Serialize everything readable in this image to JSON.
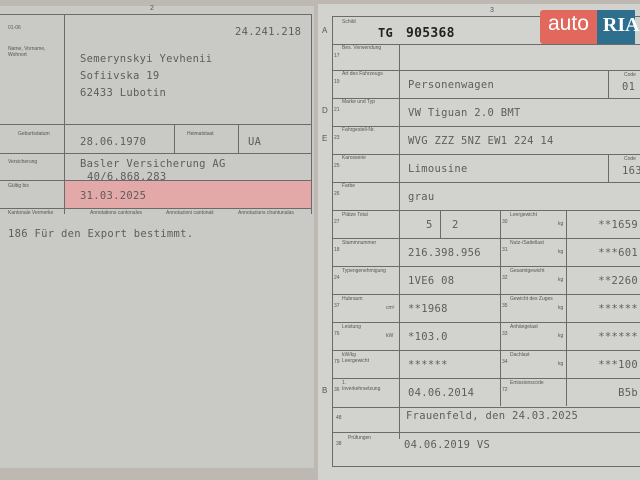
{
  "left": {
    "page_number": "2",
    "code": "01-06",
    "number": "24.241.218",
    "owner_label": "Name, Vorname, Wohnort",
    "owner_name": "Semerynskyi Yevhenii",
    "street": "Sofiivska 19",
    "city": "62433 Lubotin",
    "birth_label": "Geburtsdatum",
    "birth_date": "28.06.1970",
    "origin_label": "Heimatstaat",
    "origin": "UA",
    "insurance_label": "Versicherung",
    "insurance": "Basler Versicherung AG",
    "insurance_number": "40/6.868.283",
    "valid_label": "Gültig bis",
    "valid_until": "31.03.2025",
    "notes_labels": [
      "Kantonale Vermerke",
      "Annotations cantonales",
      "Annotazioni cantonali",
      "Annotaziuns chantunalas"
    ],
    "note": "186 Für den Export bestimmt."
  },
  "right": {
    "page_number": "3",
    "plate_label": "Schild",
    "plate_canton": "TG",
    "plate_number": "905368",
    "plate_color": "weiss",
    "rows": [
      {
        "letter": "A",
        "code": "15",
        "label": "Schild",
        "value": ""
      },
      {
        "letter": "",
        "code": "17",
        "label": "Bes. Verwendung",
        "value": ""
      },
      {
        "letter": "",
        "code": "19",
        "label": "Art des Fahrzeugs",
        "value": "Personenwagen",
        "code_label": "Code",
        "code_value": "01"
      },
      {
        "letter": "D",
        "code": "21",
        "label": "Marke und Typ",
        "value": "VW Tiguan 2.0 BMT"
      },
      {
        "letter": "E",
        "code": "23",
        "label": "Fahrgestell-Nr.",
        "value": "WVG ZZZ 5NZ EW1 224 14"
      },
      {
        "letter": "",
        "code": "25",
        "label": "Karosserie",
        "value": "Limousine",
        "code_label": "Code",
        "code_value": "163"
      },
      {
        "letter": "",
        "code": "26",
        "label": "Farbe",
        "value": "grau"
      }
    ],
    "grid": [
      {
        "code": "27",
        "label": "Plätze Total",
        "value": "5",
        "mid": "2",
        "r_code": "30",
        "r_label": "Leergewicht",
        "r_unit": "kg",
        "r_value": "**1659"
      },
      {
        "code": "18",
        "label": "Stammnummer",
        "value": "216.398.956",
        "r_code": "31",
        "r_label": "Nutz-/Sattellast",
        "r_unit": "kg",
        "r_value": "***601"
      },
      {
        "code": "24",
        "label": "Typengenehmigung",
        "value": "1VE6 08",
        "r_code": "32",
        "r_label": "Gesamtgewicht",
        "r_unit": "kg",
        "r_value": "**2260"
      },
      {
        "code": "37",
        "label": "Hubraum",
        "unit": "cm³",
        "value": "**1968",
        "r_code": "35",
        "r_label": "Gewicht des Zuges",
        "r_unit": "kg",
        "r_value": "******"
      },
      {
        "code": "76",
        "label": "Leistung",
        "unit": "kW",
        "value": "*103.0",
        "r_code": "33",
        "r_label": "Anhängelast",
        "r_unit": "kg",
        "r_value": "******"
      },
      {
        "code": "79",
        "label": "kW/kg Leergewicht",
        "value": "******",
        "r_code": "34",
        "r_label": "Dachlast",
        "r_unit": "kg",
        "r_value": "***100"
      },
      {
        "code": "36",
        "letter": "B",
        "label": "1. Inverkehrsetzung",
        "value": "04.06.2014",
        "r_code": "72",
        "r_label": "Emissionscode",
        "r_value": "B5b"
      }
    ],
    "issued_code": "48",
    "issued": "Frauenfeld, den 24.03.2025",
    "exam_code": "38",
    "exam_label": "Prüfungen",
    "exam": "04.06.2019 VS"
  },
  "watermark": {
    "auto": "auto",
    "ria": "RIA"
  }
}
